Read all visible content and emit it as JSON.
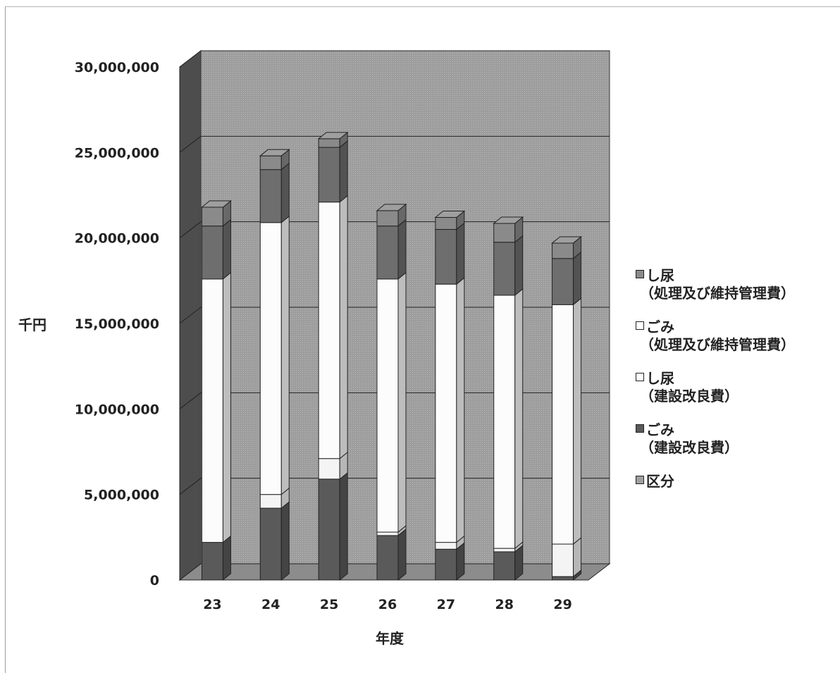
{
  "chart_data": {
    "type": "bar",
    "stacked": true,
    "three_d": true,
    "xlabel": "年度",
    "ylabel": "千円",
    "ylim": [
      0,
      30000000
    ],
    "yticks": [
      "0",
      "5,000,000",
      "10,000,000",
      "15,000,000",
      "20,000,000",
      "25,000,000",
      "30,000,000"
    ],
    "categories": [
      "23",
      "24",
      "25",
      "26",
      "27",
      "28",
      "29"
    ],
    "series": [
      {
        "name": "ごみ（建設改良費）",
        "color": "#5a5a5a",
        "values": [
          2200000,
          4200000,
          5900000,
          2600000,
          1800000,
          1650000,
          200000
        ]
      },
      {
        "name": "し尿（建設改良費）",
        "color": "#f4f4f4",
        "values": [
          0,
          800000,
          1200000,
          200000,
          400000,
          200000,
          1900000
        ]
      },
      {
        "name": "ごみ（処理及び維持管理費）",
        "color": "#fcfcfc",
        "values": [
          15400000,
          15900000,
          15000000,
          14800000,
          15100000,
          14800000,
          14000000
        ]
      },
      {
        "name": "し尿（処理及び維持管理費）",
        "color": "#6e6e6e",
        "values": [
          3100000,
          3100000,
          3200000,
          3100000,
          3200000,
          3100000,
          2700000
        ]
      },
      {
        "name": "区分",
        "color": "#8a8a8a",
        "values": [
          1100000,
          800000,
          500000,
          900000,
          700000,
          1100000,
          900000
        ]
      }
    ],
    "grid": true,
    "legend_position": "right"
  },
  "legend": [
    {
      "line1": "し尿",
      "line2": "（処理及び維持管理費）",
      "color": "#8a8a8a"
    },
    {
      "line1": "ごみ",
      "line2": "（処理及び維持管理費）",
      "color": "#ffffff"
    },
    {
      "line1": "し尿",
      "line2": "（建設改良費）",
      "color": "#ffffff"
    },
    {
      "line1": "ごみ",
      "line2": "（建設改良費）",
      "color": "#5a5a5a"
    },
    {
      "line1": "区分",
      "line2": "",
      "color": "#a0a0a0"
    }
  ]
}
